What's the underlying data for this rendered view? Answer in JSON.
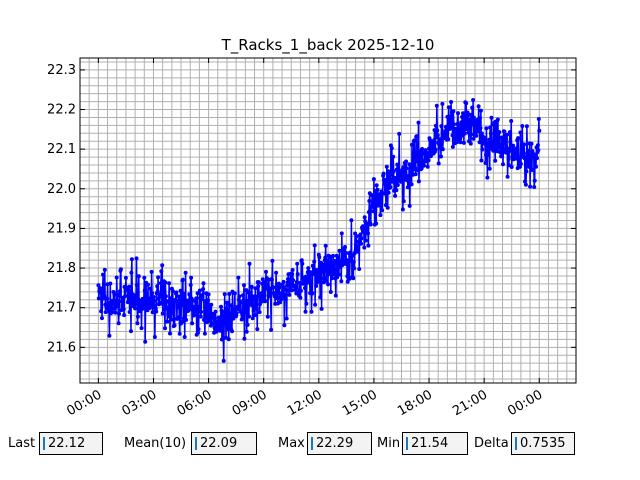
{
  "chart_data": {
    "type": "line",
    "title": "T_Racks_1_back 2025-12-10",
    "xlabel": "",
    "ylabel": "",
    "x_ticks": [
      "00:00",
      "03:00",
      "06:00",
      "09:00",
      "12:00",
      "15:00",
      "18:00",
      "21:00",
      "00:00"
    ],
    "x_range_hours": [
      -1.0,
      26.0
    ],
    "y_ticks": [
      "21.6",
      "21.7",
      "21.8",
      "21.9",
      "22.0",
      "22.1",
      "22.2",
      "22.3"
    ],
    "ylim": [
      21.51,
      22.33
    ],
    "grid": true,
    "line_color": "#0000ff",
    "series": [
      {
        "hours": [
          0.0,
          0.5,
          1.0,
          1.5,
          2.0,
          2.5,
          3.0,
          3.5,
          4.0,
          4.5,
          5.0,
          5.5,
          6.0,
          6.5,
          7.0,
          7.5,
          8.0,
          8.5,
          9.0,
          9.5,
          10.0,
          10.5,
          11.0,
          11.5,
          12.0,
          12.5,
          13.0,
          13.5,
          14.0,
          14.5,
          15.0,
          15.5,
          16.0,
          16.5,
          17.0,
          17.5,
          18.0,
          18.5,
          19.0,
          19.5,
          20.0,
          20.5,
          21.0,
          21.5,
          22.0,
          22.5,
          23.0,
          23.5,
          24.0
        ],
        "values": [
          21.74,
          21.71,
          21.72,
          21.73,
          21.72,
          21.71,
          21.72,
          21.71,
          21.7,
          21.72,
          21.71,
          21.71,
          21.68,
          21.66,
          21.67,
          21.69,
          21.71,
          21.72,
          21.73,
          21.74,
          21.74,
          21.75,
          21.76,
          21.78,
          21.79,
          21.79,
          21.8,
          21.81,
          21.84,
          21.9,
          21.95,
          22.0,
          22.03,
          22.03,
          22.04,
          22.07,
          22.09,
          22.12,
          22.15,
          22.14,
          22.16,
          22.15,
          22.12,
          22.1,
          22.12,
          22.09,
          22.08,
          22.06,
          22.1
        ]
      }
    ],
    "amplitude_min": 0.02,
    "amplitude_max": 0.11
  },
  "stats": {
    "last_label": "Last",
    "last_value": "22.12",
    "mean_label": "Mean(10)",
    "mean_value": "22.09",
    "max_label": "Max",
    "max_value": "22.29",
    "min_label": "Min",
    "min_value": "21.54",
    "delta_label": "Delta",
    "delta_value": "0.7535"
  }
}
